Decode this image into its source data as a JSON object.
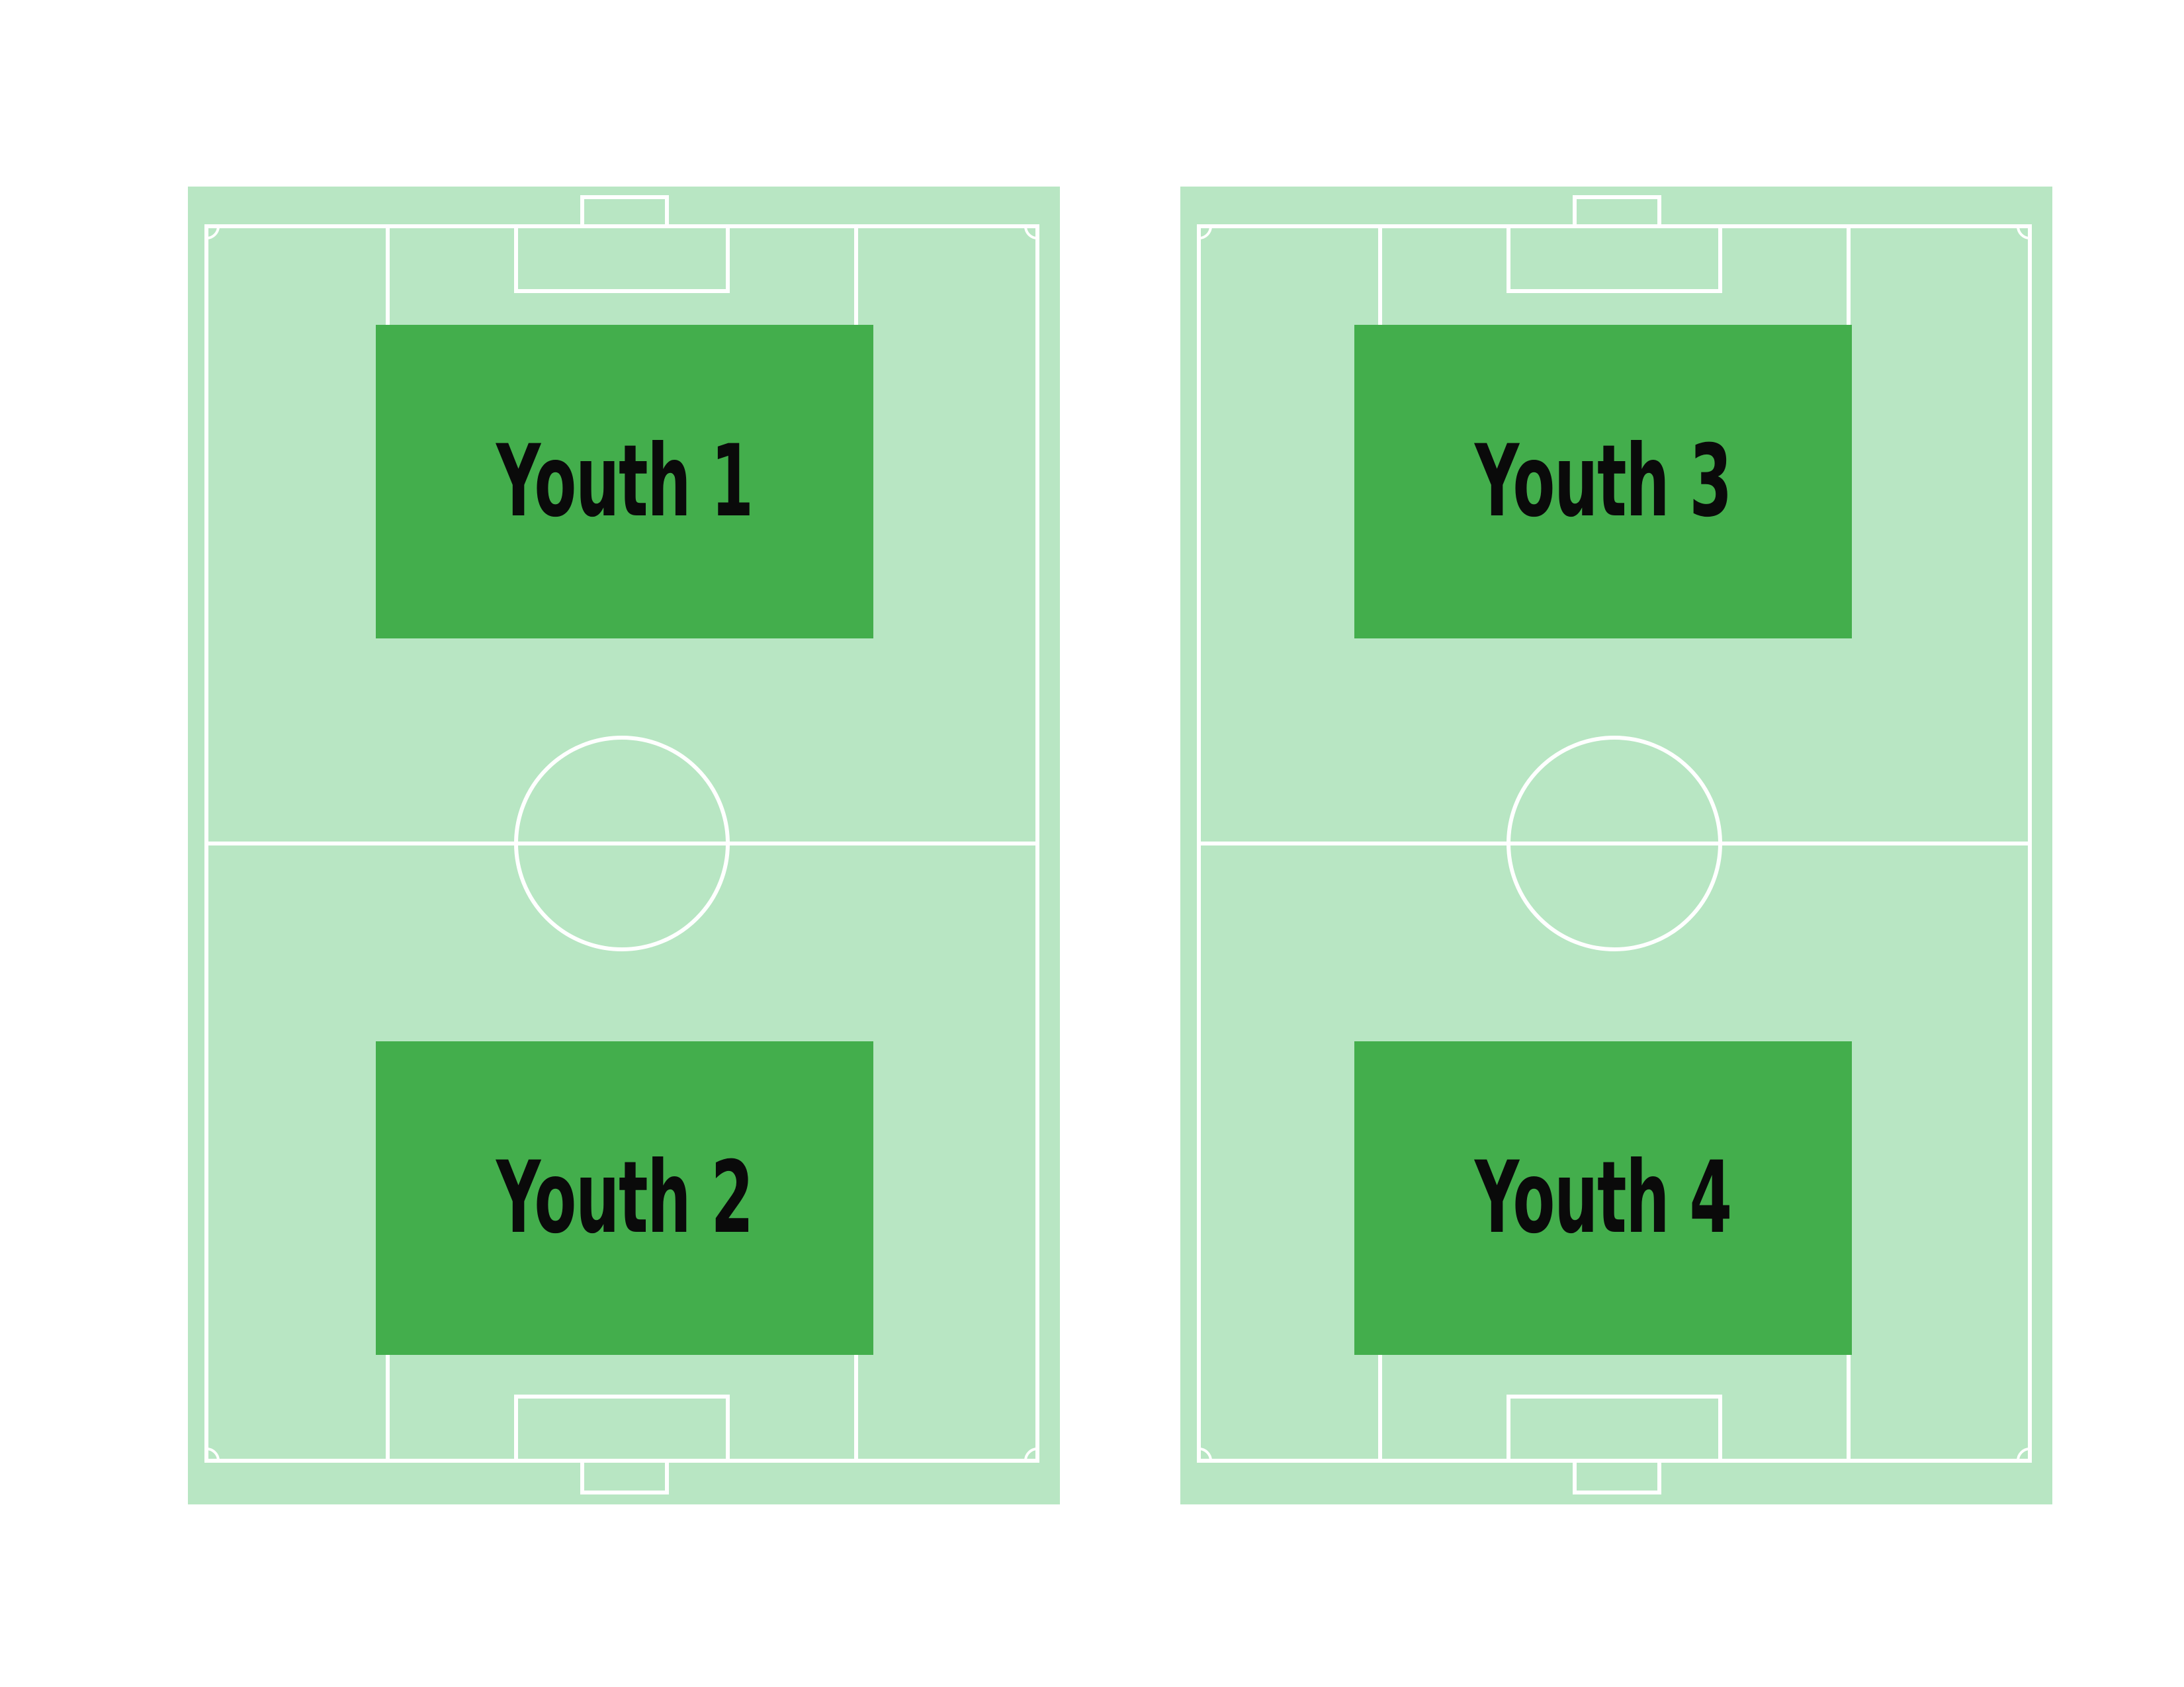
{
  "colors": {
    "background": "#ffffff",
    "pitch": "#b8e6c3",
    "zone": "#43ae4c",
    "lines": "#ffffff",
    "label": "#0a0a0a"
  },
  "pitches": [
    {
      "zones": [
        {
          "label": "Youth 1"
        },
        {
          "label": "Youth 2"
        }
      ]
    },
    {
      "zones": [
        {
          "label": "Youth 3"
        },
        {
          "label": "Youth 4"
        }
      ]
    }
  ]
}
